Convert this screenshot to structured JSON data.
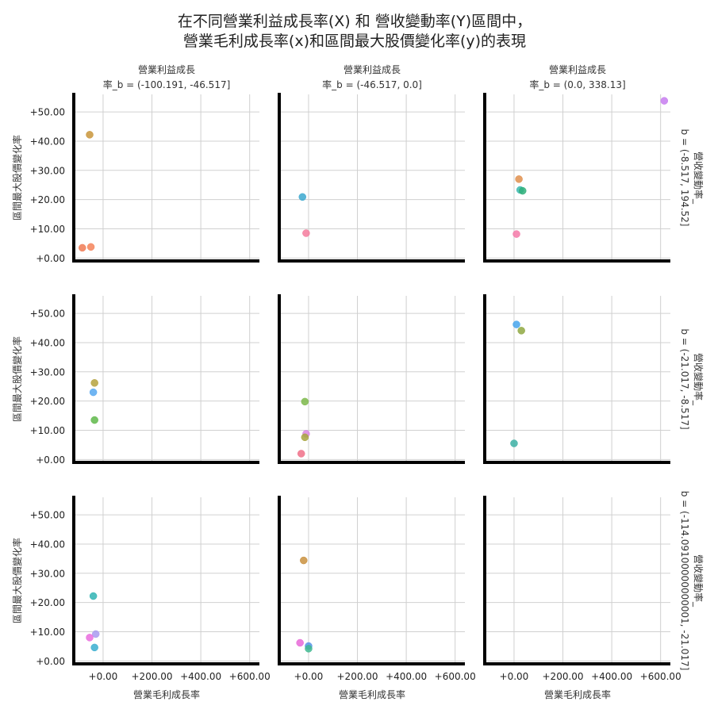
{
  "chart_data": {
    "type": "scatter",
    "title": [
      "在不同營業利益成長率(X) 和 營收變動率(Y)區間中，",
      "營業毛利成長率(x)和區間最大股價變化率(y)的表現"
    ],
    "xlabel": "營業毛利成長率",
    "ylabel": "區間最大股價變化率",
    "xlim": [
      -120,
      640
    ],
    "ylim": [
      -1,
      56
    ],
    "x_ticks": [
      0,
      200,
      400,
      600
    ],
    "x_tick_labels": [
      "+0.00",
      "+200.00",
      "+400.00",
      "+600.00"
    ],
    "y_ticks": [
      0,
      10,
      20,
      30,
      40,
      50
    ],
    "y_tick_labels": [
      "+0.00",
      "+10.00",
      "+20.00",
      "+30.00",
      "+40.00",
      "+50.00"
    ],
    "grid": true,
    "legend": "none",
    "col_titles": [
      [
        "營業利益成長",
        "率_b = (-100.191, -46.517]"
      ],
      [
        "營業利益成長",
        "率_b = (-46.517, 0.0]"
      ],
      [
        "營業利益成長",
        "率_b = (0.0, 338.13]"
      ]
    ],
    "row_titles": [
      [
        "營收變動率_",
        "b = (-8.517, 194.52]"
      ],
      [
        "營收變動率_",
        "b = (-21.017, -8.517]"
      ],
      [
        "營收變動率_",
        "b = (-114.09100000000001, -21.017]"
      ]
    ],
    "panels": [
      [
        {
          "points": [
            {
              "x": -55,
              "y": 42.2,
              "color": "#c9953a"
            },
            {
              "x": -85,
              "y": 3.5,
              "color": "#f07b55"
            },
            {
              "x": -50,
              "y": 3.8,
              "color": "#f5845a"
            }
          ]
        },
        {
          "points": [
            {
              "x": -25,
              "y": 20.9,
              "color": "#3ca8cf"
            },
            {
              "x": -10,
              "y": 8.5,
              "color": "#f47b9c"
            }
          ]
        },
        {
          "points": [
            {
              "x": 615,
              "y": 53.8,
              "color": "#c77cf0"
            },
            {
              "x": 20,
              "y": 27.0,
              "color": "#e08f4c"
            },
            {
              "x": 25,
              "y": 23.3,
              "color": "#3cb8b0"
            },
            {
              "x": 35,
              "y": 23.0,
              "color": "#30b07a"
            },
            {
              "x": 10,
              "y": 8.2,
              "color": "#f479a8"
            }
          ]
        }
      ],
      [
        {
          "points": [
            {
              "x": -35,
              "y": 26.2,
              "color": "#b5a23e"
            },
            {
              "x": -40,
              "y": 23.0,
              "color": "#57a8f0"
            },
            {
              "x": -35,
              "y": 13.5,
              "color": "#5fb84a"
            }
          ]
        },
        {
          "points": [
            {
              "x": -15,
              "y": 19.8,
              "color": "#7db84a"
            },
            {
              "x": -10,
              "y": 8.8,
              "color": "#d886e0"
            },
            {
              "x": -15,
              "y": 7.6,
              "color": "#a8a43e"
            },
            {
              "x": -30,
              "y": 2.0,
              "color": "#f07088"
            }
          ]
        },
        {
          "points": [
            {
              "x": 10,
              "y": 46.2,
              "color": "#46a4ec"
            },
            {
              "x": 30,
              "y": 44.1,
              "color": "#8fa842"
            },
            {
              "x": 0,
              "y": 5.5,
              "color": "#3cb0a4"
            }
          ]
        }
      ],
      [
        {
          "points": [
            {
              "x": -40,
              "y": 22.2,
              "color": "#30b4b4"
            },
            {
              "x": -30,
              "y": 9.2,
              "color": "#a89af0"
            },
            {
              "x": -55,
              "y": 8.0,
              "color": "#ea6cde"
            },
            {
              "x": -35,
              "y": 4.6,
              "color": "#3aaed0"
            }
          ]
        },
        {
          "points": [
            {
              "x": -20,
              "y": 34.4,
              "color": "#c9903e"
            },
            {
              "x": -35,
              "y": 6.2,
              "color": "#e868d8"
            },
            {
              "x": 0,
              "y": 5.1,
              "color": "#5592e8"
            },
            {
              "x": 0,
              "y": 4.2,
              "color": "#40b890"
            }
          ]
        },
        {
          "points": []
        }
      ]
    ]
  }
}
